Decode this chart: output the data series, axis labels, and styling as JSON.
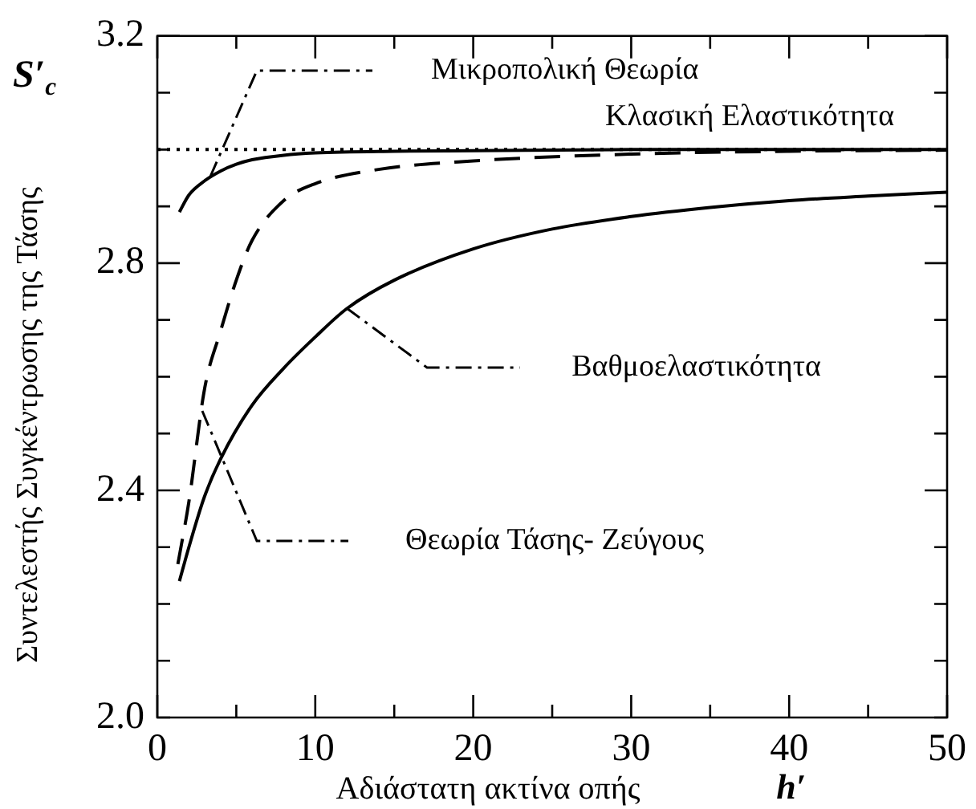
{
  "chart_data": {
    "type": "line",
    "xlabel": "Αδιάστατη ακτίνα οπής",
    "ylabel": "Συντελεστής Συγκέντρωσης της Τάσης",
    "xlim": [
      0,
      50
    ],
    "ylim": [
      2.0,
      3.2
    ],
    "xticks": [
      0,
      {
        "value": 5,
        "label": null
      },
      10,
      {
        "value": 15,
        "label": null
      },
      20,
      {
        "value": 25,
        "label": null
      },
      30,
      {
        "value": 35,
        "label": null
      },
      40,
      {
        "value": 45,
        "label": null
      },
      50
    ],
    "yticks": [
      {
        "value": 2.0,
        "label": "2.0"
      },
      {
        "value": 2.1,
        "label": null
      },
      {
        "value": 2.2,
        "label": null
      },
      {
        "value": 2.3,
        "label": null
      },
      2.4,
      {
        "value": 2.5,
        "label": null
      },
      {
        "value": 2.6,
        "label": null
      },
      {
        "value": 2.7,
        "label": null
      },
      2.8,
      {
        "value": 2.9,
        "label": null
      },
      {
        "value": 3.0,
        "label": null
      },
      {
        "value": 3.1,
        "label": null
      },
      3.2
    ],
    "grid": false,
    "legend": false,
    "marker": "none",
    "series": [
      {
        "color": "#000000",
        "line_style": "solid",
        "x": [
          1.4,
          2,
          3,
          4,
          5,
          6,
          8,
          10,
          15,
          20,
          30,
          40,
          50
        ],
        "values": [
          2.89,
          2.92,
          2.945,
          2.962,
          2.974,
          2.982,
          2.99,
          2.994,
          2.997,
          2.998,
          3.0,
          3.0,
          3.0
        ]
      },
      {
        "color": "#000000",
        "line_style": "dotted",
        "x": [
          0,
          50
        ],
        "values": [
          3.0,
          3.0
        ]
      },
      {
        "color": "#000000",
        "line_style": "dashed",
        "x": [
          1.3,
          2,
          3,
          4,
          5,
          6,
          8,
          10,
          14,
          20,
          30,
          40,
          50
        ],
        "values": [
          2.27,
          2.38,
          2.58,
          2.68,
          2.77,
          2.84,
          2.91,
          2.94,
          2.965,
          2.98,
          2.992,
          2.997,
          2.999
        ]
      },
      {
        "color": "#000000",
        "line_style": "solid",
        "x": [
          1.4,
          2,
          3,
          4,
          6,
          8,
          10,
          12,
          15,
          20,
          25,
          30,
          35,
          40,
          45,
          50
        ],
        "values": [
          2.24,
          2.3,
          2.39,
          2.455,
          2.55,
          2.615,
          2.67,
          2.72,
          2.77,
          2.825,
          2.86,
          2.882,
          2.898,
          2.91,
          2.918,
          2.925
        ]
      }
    ],
    "annotations": [
      "Μικροπολική Θεωρία",
      {
        "text": "Κλασική Ελαστικότητα",
        "x": 37.5,
        "y": 3.0
      },
      "Βαθμοελαστικότητα",
      "Θεωρία Τάσης- Ζεύγους",
      "S′$_{c}$",
      "h′"
    ]
  }
}
